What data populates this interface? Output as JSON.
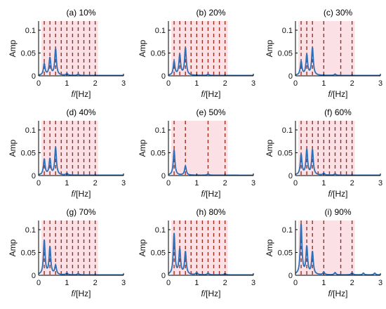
{
  "chart_data": [
    {
      "type": "line",
      "title": "(a) 10%",
      "xlabel_prefix": "f",
      "xlabel_suffix": "/[Hz]",
      "ylabel": "Amp",
      "xlim": [
        0,
        3
      ],
      "ylim": [
        0,
        0.12
      ],
      "xticks": [
        0,
        1,
        2,
        3
      ],
      "yticks": [
        0,
        0.05,
        0.1
      ],
      "ytick_labels": [
        "0",
        "0.05",
        "0.1"
      ],
      "dashed_lines_x": [
        0.2,
        0.4,
        0.6,
        0.8,
        1.0,
        1.2,
        1.4,
        1.6,
        1.8,
        2.0
      ],
      "series": [
        {
          "peaks": [
            [
              0.2,
              0.025
            ],
            [
              0.4,
              0.038
            ],
            [
              0.6,
              0.058
            ],
            [
              1.0,
              0.004
            ],
            [
              1.4,
              0.003
            ]
          ]
        }
      ]
    },
    {
      "type": "line",
      "title": "(b) 20%",
      "xlabel_prefix": "f",
      "xlabel_suffix": "/[Hz]",
      "ylabel": "Amp",
      "xlim": [
        0,
        3
      ],
      "ylim": [
        0,
        0.12
      ],
      "xticks": [
        0,
        1,
        2,
        3
      ],
      "yticks": [
        0,
        0.05,
        0.1
      ],
      "ytick_labels": [
        "0",
        "0.05",
        "0.1"
      ],
      "dashed_lines_x": [
        0.2,
        0.4,
        0.6,
        0.8,
        1.0,
        1.2,
        1.4,
        1.6,
        1.8,
        2.0
      ],
      "series": [
        {
          "peaks": [
            [
              0.2,
              0.03
            ],
            [
              0.4,
              0.045
            ],
            [
              0.6,
              0.06
            ],
            [
              1.4,
              0.003
            ]
          ]
        }
      ]
    },
    {
      "type": "line",
      "title": "(c) 30%",
      "xlabel_prefix": "f",
      "xlabel_suffix": "/[Hz]",
      "ylabel": "Amp",
      "xlim": [
        0,
        3
      ],
      "ylim": [
        0,
        0.12
      ],
      "xticks": [
        0,
        1,
        2,
        3
      ],
      "yticks": [
        0,
        0.05,
        0.1
      ],
      "ytick_labels": [
        "0",
        "0.05",
        "0.1"
      ],
      "dashed_lines_x": [
        0.2,
        0.4,
        0.6,
        1.0,
        1.6,
        2.0
      ],
      "series": [
        {
          "peaks": [
            [
              0.2,
              0.03
            ],
            [
              0.4,
              0.045
            ],
            [
              0.6,
              0.06
            ],
            [
              1.4,
              0.003
            ]
          ]
        }
      ]
    },
    {
      "type": "line",
      "title": "(d) 40%",
      "xlabel_prefix": "f",
      "xlabel_suffix": "/[Hz]",
      "ylabel": "Amp",
      "xlim": [
        0,
        3
      ],
      "ylim": [
        0,
        0.12
      ],
      "xticks": [
        0,
        1,
        2,
        3
      ],
      "yticks": [
        0,
        0.05,
        0.1
      ],
      "ytick_labels": [
        "0",
        "0.05",
        "0.1"
      ],
      "dashed_lines_x": [
        0.2,
        0.4,
        0.6,
        0.8,
        1.0,
        1.2,
        1.4,
        1.6,
        1.8,
        2.0
      ],
      "series": [
        {
          "peaks": [
            [
              0.2,
              0.035
            ],
            [
              0.4,
              0.035
            ],
            [
              0.6,
              0.06
            ],
            [
              1.0,
              0.004
            ]
          ]
        }
      ]
    },
    {
      "type": "line",
      "title": "(e) 50%",
      "xlabel_prefix": "f",
      "xlabel_suffix": "/[Hz]",
      "ylabel": "Amp",
      "xlim": [
        0,
        3
      ],
      "ylim": [
        0,
        0.12
      ],
      "xticks": [
        0,
        1,
        2,
        3
      ],
      "yticks": [
        0,
        0.05,
        0.1
      ],
      "ytick_labels": [
        "0",
        "0.05",
        "0.1"
      ],
      "dashed_lines_x": [
        0.2,
        0.6,
        1.4,
        2.0
      ],
      "series": [
        {
          "peaks": [
            [
              0.2,
              0.055
            ],
            [
              0.6,
              0.02
            ],
            [
              1.4,
              0.003
            ]
          ]
        }
      ]
    },
    {
      "type": "line",
      "title": "(f) 60%",
      "xlabel_prefix": "f",
      "xlabel_suffix": "/[Hz]",
      "ylabel": "Amp",
      "xlim": [
        0,
        3
      ],
      "ylim": [
        0,
        0.12
      ],
      "xticks": [
        0,
        1,
        2,
        3
      ],
      "yticks": [
        0,
        0.05,
        0.1
      ],
      "ytick_labels": [
        "0",
        "0.05",
        "0.1"
      ],
      "dashed_lines_x": [
        0.2,
        0.4,
        0.6,
        0.8,
        1.0,
        1.2,
        1.4,
        1.6,
        1.8,
        2.0
      ],
      "series": [
        {
          "peaks": [
            [
              0.2,
              0.045
            ],
            [
              0.4,
              0.055
            ],
            [
              0.6,
              0.055
            ],
            [
              1.0,
              0.004
            ],
            [
              1.4,
              0.003
            ]
          ]
        }
      ]
    },
    {
      "type": "line",
      "title": "(g) 70%",
      "xlabel_prefix": "f",
      "xlabel_suffix": "/[Hz]",
      "ylabel": "Amp",
      "xlim": [
        0,
        3
      ],
      "ylim": [
        0,
        0.12
      ],
      "xticks": [
        0,
        1,
        2,
        3
      ],
      "yticks": [
        0,
        0.05,
        0.1
      ],
      "ytick_labels": [
        "0",
        "0.05",
        "0.1"
      ],
      "dashed_lines_x": [
        0.2,
        0.4,
        0.6,
        0.8,
        1.0,
        1.2,
        1.4,
        1.6,
        1.8,
        2.0
      ],
      "series": [
        {
          "peaks": [
            [
              0.2,
              0.075
            ],
            [
              0.4,
              0.06
            ],
            [
              0.6,
              0.02
            ],
            [
              1.0,
              0.004
            ],
            [
              1.4,
              0.003
            ]
          ]
        }
      ]
    },
    {
      "type": "line",
      "title": "(h) 80%",
      "xlabel_prefix": "f",
      "xlabel_suffix": "/[Hz]",
      "ylabel": "Amp",
      "xlim": [
        0,
        3
      ],
      "ylim": [
        0,
        0.12
      ],
      "xticks": [
        0,
        1,
        2,
        3
      ],
      "yticks": [
        0,
        0.05,
        0.1
      ],
      "ytick_labels": [
        "0",
        "0.05",
        "0.1"
      ],
      "dashed_lines_x": [
        0.2,
        0.4,
        0.6,
        0.8,
        1.0,
        1.2,
        1.4,
        1.6,
        1.8,
        2.0
      ],
      "series": [
        {
          "peaks": [
            [
              0.2,
              0.09
            ],
            [
              0.4,
              0.055
            ],
            [
              0.6,
              0.05
            ],
            [
              1.0,
              0.005
            ],
            [
              1.4,
              0.004
            ],
            [
              2.0,
              0.003
            ]
          ]
        }
      ]
    },
    {
      "type": "line",
      "title": "(i) 90%",
      "xlabel_prefix": "f",
      "xlabel_suffix": "/[Hz]",
      "ylabel": "Amp",
      "xlim": [
        0,
        3
      ],
      "ylim": [
        0,
        0.12
      ],
      "xticks": [
        0,
        1,
        2,
        3
      ],
      "yticks": [
        0,
        0.05,
        0.1
      ],
      "ytick_labels": [
        "0",
        "0.05",
        "0.1"
      ],
      "dashed_lines_x": [
        0.2,
        0.4,
        0.6,
        1.0,
        1.6,
        2.0
      ],
      "series": [
        {
          "peaks": [
            [
              0.2,
              0.11
            ],
            [
              0.4,
              0.06
            ],
            [
              0.6,
              0.05
            ],
            [
              1.0,
              0.006
            ],
            [
              1.4,
              0.005
            ],
            [
              2.0,
              0.005
            ],
            [
              2.4,
              0.004
            ],
            [
              2.8,
              0.004
            ]
          ]
        }
      ]
    }
  ],
  "colors": {
    "line": "#2e6fb7",
    "highlight": "#f7c9d1",
    "dashed": "#9b2f1e",
    "axis": "#000000"
  }
}
